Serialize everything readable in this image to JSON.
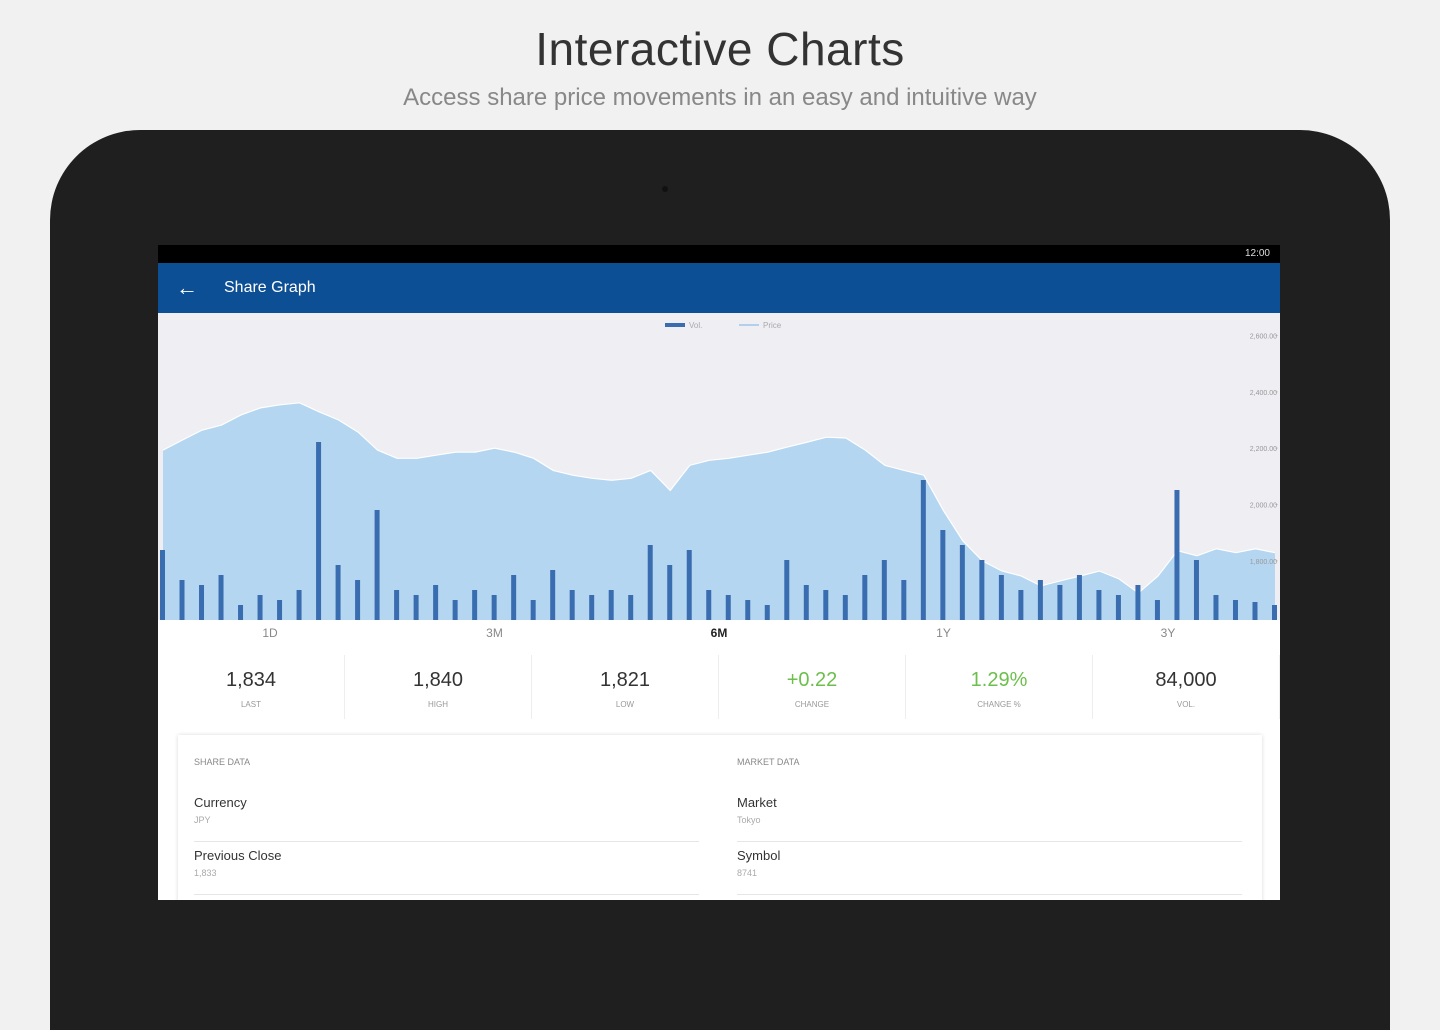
{
  "header": {
    "title": "Interactive Charts",
    "subtitle": "Access share price movements in an easy and intuitive way"
  },
  "status_bar": {
    "time": "12:00"
  },
  "app_bar": {
    "title": "Share Graph"
  },
  "chart_data": {
    "type": "bar-area",
    "series": [
      {
        "name": "Vol.",
        "color": "#3a6db0",
        "axis": "y2",
        "values": [
          70,
          40,
          35,
          45,
          15,
          25,
          20,
          30,
          178,
          55,
          40,
          110,
          30,
          25,
          35,
          20,
          30,
          25,
          45,
          20,
          50,
          30,
          25,
          30,
          25,
          75,
          55,
          70,
          30,
          25,
          20,
          15,
          60,
          35,
          30,
          25,
          45,
          60,
          40,
          140,
          90,
          75,
          60,
          45,
          30,
          40,
          35,
          45,
          30,
          25,
          35,
          20,
          130,
          60,
          25,
          20,
          18,
          15
        ]
      },
      {
        "name": "Price",
        "color": "#b5d6f1",
        "values": [
          2193,
          2229,
          2264,
          2282,
          2318,
          2343,
          2354,
          2361,
          2329,
          2300,
          2257,
          2193,
          2164,
          2164,
          2175,
          2186,
          2186,
          2200,
          2186,
          2164,
          2121,
          2104,
          2093,
          2086,
          2093,
          2121,
          2050,
          2139,
          2157,
          2164,
          2175,
          2186,
          2204,
          2221,
          2239,
          2236,
          2193,
          2139,
          2121,
          2104,
          1979,
          1871,
          1800,
          1764,
          1746,
          1711,
          1729,
          1746,
          1764,
          1736,
          1686,
          1746,
          1836,
          1818,
          1843,
          1829,
          1843,
          1829
        ]
      }
    ],
    "ylim": [
      1590,
      2655
    ],
    "yticks": [
      {
        "value": 2600,
        "label": "2,600.00"
      },
      {
        "value": 2400,
        "label": "2,400.00"
      },
      {
        "value": 2200,
        "label": "2,200.00"
      },
      {
        "value": 2000,
        "label": "2,000.00"
      },
      {
        "value": 1800,
        "label": "1,800.00"
      }
    ],
    "y2lim": [
      0,
      300
    ],
    "legend": "top"
  },
  "range_buttons": {
    "items": [
      "1D",
      "3M",
      "6M",
      "1Y",
      "3Y"
    ],
    "selected": "6M"
  },
  "stats": [
    {
      "value": "1,834",
      "label": "LAST"
    },
    {
      "value": "1,840",
      "label": "HIGH"
    },
    {
      "value": "1,821",
      "label": "LOW"
    },
    {
      "value": "+0.22",
      "label": "CHANGE"
    },
    {
      "value": "1.29%",
      "label": "CHANGE %"
    },
    {
      "value": "84,000",
      "label": "VOL."
    }
  ],
  "share_data": {
    "heading": "SHARE DATA",
    "rows": [
      {
        "key": "Currency",
        "value": "JPY"
      },
      {
        "key": "Previous Close",
        "value": "1,833"
      }
    ]
  },
  "market_data": {
    "heading": "MARKET DATA",
    "rows": [
      {
        "key": "Market",
        "value": "Tokyo"
      },
      {
        "key": "Symbol",
        "value": "8741"
      }
    ]
  }
}
